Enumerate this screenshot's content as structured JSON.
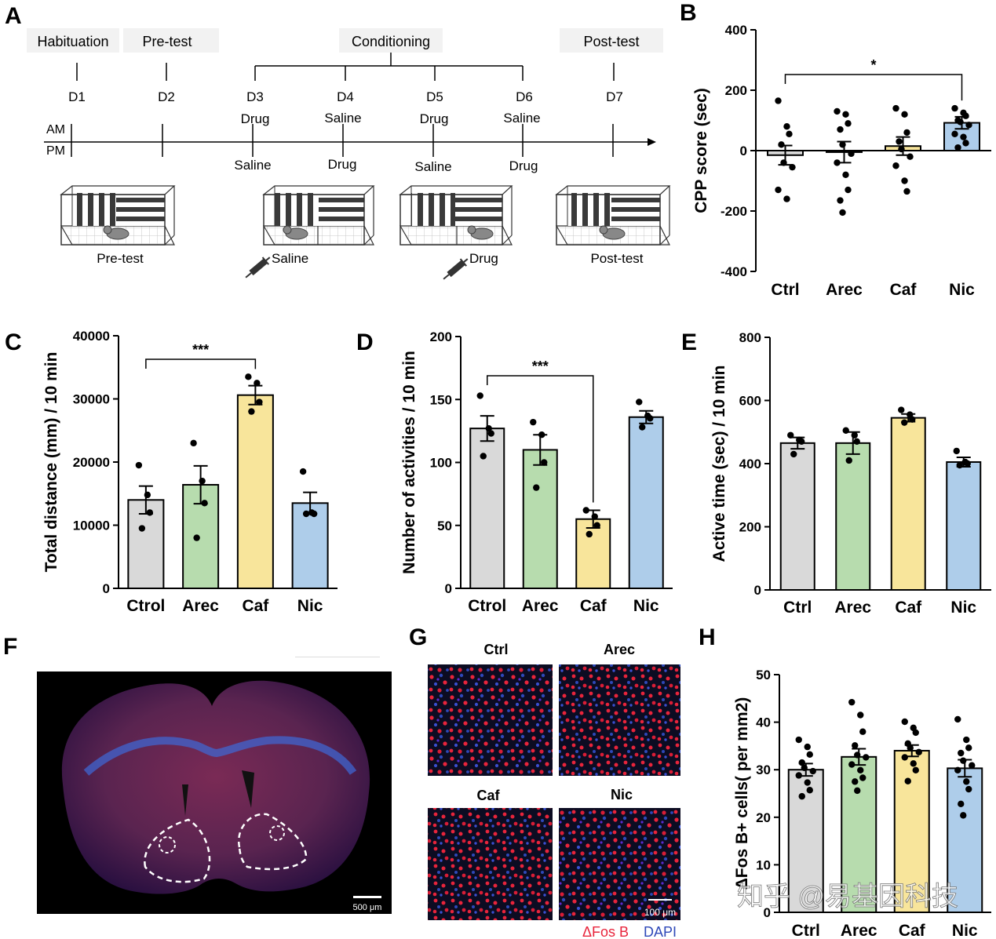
{
  "panels": {
    "A": {
      "label": "A",
      "phases": {
        "habituation": "Habituation",
        "pretest": "Pre-test",
        "conditioning": "Conditioning",
        "posttest": "Post-test"
      },
      "days": [
        "D1",
        "D2",
        "D3",
        "D4",
        "D5",
        "D6",
        "D7"
      ],
      "am": "AM",
      "pm": "PM",
      "am_treatments": [
        "Drug",
        "Saline",
        "Drug",
        "Saline"
      ],
      "pm_treatments": [
        "Saline",
        "Drug",
        "Saline",
        "Drug"
      ],
      "box_captions": [
        "Pre-test",
        "Saline",
        "Drug",
        "Post-test"
      ]
    },
    "B": {
      "label": "B"
    },
    "C": {
      "label": "C"
    },
    "D": {
      "label": "D"
    },
    "E": {
      "label": "E"
    },
    "F": {
      "label": "F",
      "scalebar": "500 μm"
    },
    "G": {
      "label": "G",
      "titles": [
        "Ctrl",
        "Arec",
        "Caf",
        "Nic"
      ],
      "scalebar": "100 μm",
      "legend_fos": "ΔFos B",
      "legend_dapi": "DAPI"
    },
    "H": {
      "label": "H"
    }
  },
  "watermark": "知乎 @易基因科技",
  "colors": {
    "ctrl": "#d9d9d9",
    "arec": "#b7dcae",
    "caf": "#f8e59b",
    "nic": "#aecdea",
    "fos": "#e8243b",
    "dapi": "#2e48b8"
  },
  "chart_data": [
    {
      "id": "B",
      "type": "bar",
      "ylabel": "CPP score (sec)",
      "categories": [
        "Ctrl",
        "Arec",
        "Caf",
        "Nic"
      ],
      "values": [
        -15,
        -5,
        15,
        92
      ],
      "sem": [
        32,
        35,
        30,
        20
      ],
      "points": [
        [
          165,
          80,
          55,
          20,
          -40,
          -55,
          -130,
          -160
        ],
        [
          130,
          120,
          90,
          70,
          20,
          -10,
          -40,
          -80,
          -130,
          -165,
          -205
        ],
        [
          140,
          120,
          60,
          30,
          5,
          -20,
          -50,
          -100,
          -135
        ],
        [
          140,
          125,
          115,
          100,
          95,
          85,
          55,
          45,
          25,
          10
        ]
      ],
      "yticks": [
        -400,
        -200,
        0,
        200,
        400
      ],
      "ylim": [
        -400,
        400
      ],
      "significance": {
        "from": "Ctrl",
        "to": "Nic",
        "label": "*"
      }
    },
    {
      "id": "C",
      "type": "bar",
      "ylabel": "Total distance (mm) / 10 min",
      "categories": [
        "Ctrol",
        "Arec",
        "Caf",
        "Nic"
      ],
      "values": [
        14000,
        16400,
        30600,
        13500
      ],
      "sem": [
        2200,
        3000,
        1500,
        1700
      ],
      "points": [
        [
          19500,
          14800,
          12000,
          9500
        ],
        [
          23000,
          17000,
          13500,
          8000
        ],
        [
          33500,
          32500,
          29500,
          28000
        ],
        [
          18500,
          12000,
          11800,
          11800
        ]
      ],
      "yticks": [
        0,
        10000,
        20000,
        30000,
        40000
      ],
      "ylim": [
        0,
        40000
      ],
      "significance": {
        "from": "Ctrol",
        "to": "Caf",
        "label": "***"
      }
    },
    {
      "id": "D",
      "type": "bar",
      "ylabel": "Number of activities / 10 min",
      "categories": [
        "Ctrol",
        "Arec",
        "Caf",
        "Nic"
      ],
      "values": [
        127,
        110,
        55,
        136
      ],
      "sem": [
        10,
        12,
        7,
        5
      ],
      "points": [
        [
          153,
          127,
          123,
          105
        ],
        [
          132,
          122,
          100,
          80
        ],
        [
          62,
          57,
          50,
          43
        ],
        [
          148,
          137,
          135,
          128
        ]
      ],
      "yticks": [
        0,
        50,
        100,
        150,
        200
      ],
      "ylim": [
        0,
        200
      ],
      "significance": {
        "from": "Ctrol",
        "to": "Caf",
        "label": "***"
      }
    },
    {
      "id": "E",
      "type": "bar",
      "ylabel": "Active time (sec) / 10 min",
      "categories": [
        "Ctrl",
        "Arec",
        "Caf",
        "Nic"
      ],
      "values": [
        465,
        465,
        545,
        405
      ],
      "sem": [
        18,
        35,
        12,
        15
      ],
      "points": [
        [
          490,
          475,
          470,
          430
        ],
        [
          505,
          490,
          470,
          410
        ],
        [
          570,
          555,
          540,
          530
        ],
        [
          440,
          405,
          400,
          395
        ]
      ],
      "yticks": [
        0,
        200,
        400,
        600,
        800
      ],
      "ylim": [
        0,
        800
      ]
    },
    {
      "id": "H",
      "type": "bar",
      "ylabel": "ΔFos B+ cells( per mm2)",
      "categories": [
        "Ctrl",
        "Arec",
        "Caf",
        "Nic"
      ],
      "values": [
        30,
        32.7,
        34,
        30.3
      ],
      "sem": [
        1.3,
        1.7,
        1.2,
        1.8
      ],
      "points": [
        [
          36.3,
          34.8,
          33.2,
          31.5,
          30.4,
          29.7,
          28.8,
          27.3,
          25.7,
          24.4
        ],
        [
          44.2,
          41.5,
          38,
          35.1,
          33.1,
          32.6,
          31.1,
          29.9,
          28.3,
          27.5,
          25.6
        ],
        [
          40.1,
          38.8,
          37.8,
          35.5,
          34.6,
          33.7,
          32.6,
          31.3,
          29.9,
          27.6
        ],
        [
          40.6,
          36.3,
          34.6,
          33.5,
          31.9,
          30.9,
          29.9,
          27.5,
          25.9,
          22.8,
          20.4
        ]
      ],
      "yticks": [
        0,
        10,
        20,
        30,
        40,
        50
      ],
      "ylim": [
        0,
        50
      ]
    }
  ]
}
